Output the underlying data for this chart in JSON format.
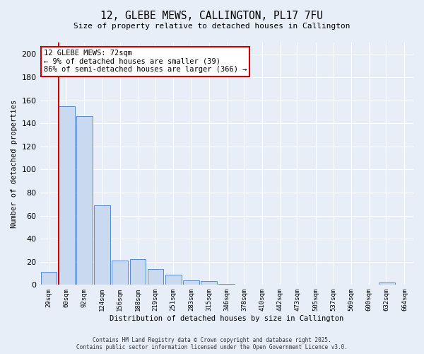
{
  "title": "12, GLEBE MEWS, CALLINGTON, PL17 7FU",
  "subtitle": "Size of property relative to detached houses in Callington",
  "xlabel": "Distribution of detached houses by size in Callington",
  "ylabel": "Number of detached properties",
  "bar_labels": [
    "29sqm",
    "60sqm",
    "92sqm",
    "124sqm",
    "156sqm",
    "188sqm",
    "219sqm",
    "251sqm",
    "283sqm",
    "315sqm",
    "346sqm",
    "378sqm",
    "410sqm",
    "442sqm",
    "473sqm",
    "505sqm",
    "537sqm",
    "569sqm",
    "600sqm",
    "632sqm",
    "664sqm"
  ],
  "bar_values": [
    11,
    155,
    146,
    69,
    21,
    22,
    14,
    9,
    4,
    3,
    1,
    0,
    0,
    0,
    0,
    0,
    0,
    0,
    0,
    2,
    0
  ],
  "bar_color": "#c9d9f0",
  "bar_edge_color": "#5b8ad4",
  "background_color": "#e8eef8",
  "grid_color": "#ffffff",
  "vline_color": "#cc0000",
  "annotation_text": "12 GLEBE MEWS: 72sqm\n← 9% of detached houses are smaller (39)\n86% of semi-detached houses are larger (366) →",
  "annotation_box_facecolor": "#ffffff",
  "annotation_box_edgecolor": "#cc0000",
  "footer1": "Contains HM Land Registry data © Crown copyright and database right 2025.",
  "footer2": "Contains public sector information licensed under the Open Government Licence v3.0.",
  "ylim": [
    0,
    210
  ],
  "yticks": [
    0,
    20,
    40,
    60,
    80,
    100,
    120,
    140,
    160,
    180,
    200
  ],
  "vline_xindex": 1
}
